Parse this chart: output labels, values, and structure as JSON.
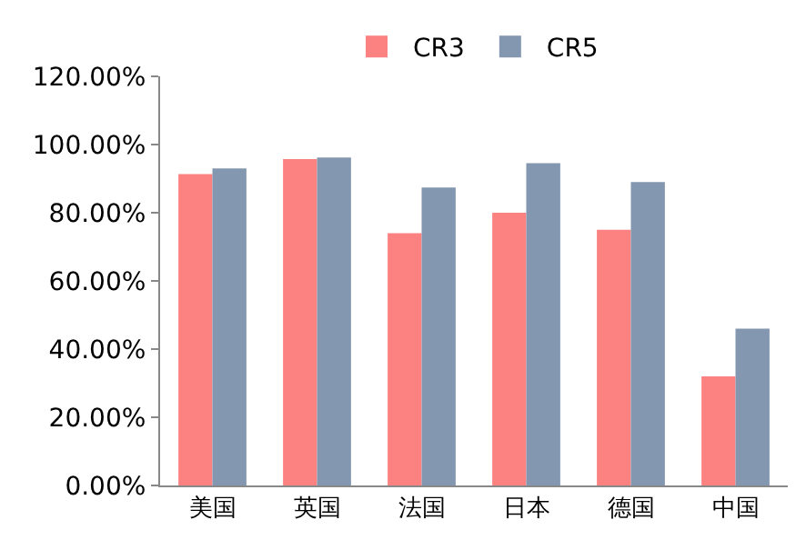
{
  "chart_data": {
    "type": "bar",
    "categories": [
      "美国",
      "英国",
      "法国",
      "日本",
      "德国",
      "中国"
    ],
    "series": [
      {
        "name": "CR3",
        "color": "#fc8181",
        "values": [
          91.3,
          95.7,
          74.0,
          80.0,
          75.0,
          32.0
        ]
      },
      {
        "name": "CR5",
        "color": "#8497b0",
        "values": [
          93.0,
          96.2,
          87.4,
          94.5,
          89.0,
          46.0
        ]
      }
    ],
    "ylim": [
      0,
      120
    ],
    "yticks": [
      {
        "value": 0,
        "label": "0.00%"
      },
      {
        "value": 20,
        "label": "20.00%"
      },
      {
        "value": 40,
        "label": "40.00%"
      },
      {
        "value": 60,
        "label": "60.00%"
      },
      {
        "value": 80,
        "label": "80.00%"
      },
      {
        "value": 100,
        "label": "100.00%"
      },
      {
        "value": 120,
        "label": "120.00%"
      }
    ],
    "legend": "top"
  }
}
